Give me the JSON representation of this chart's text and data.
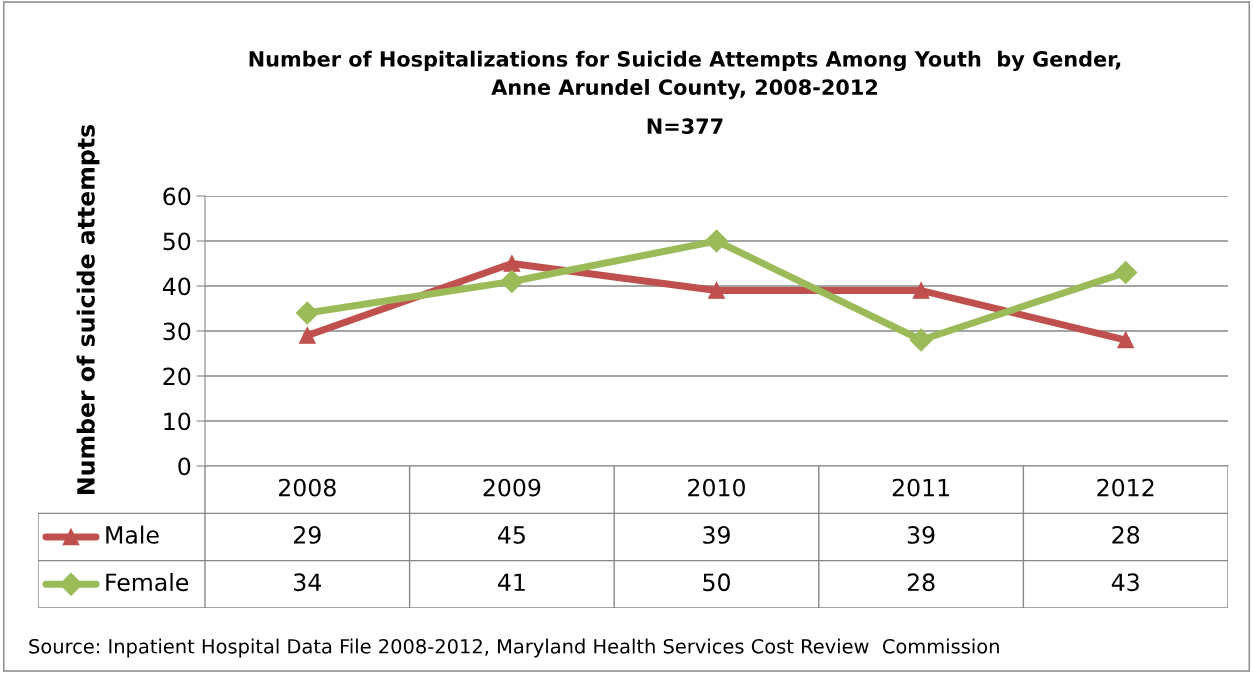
{
  "chart_data": {
    "type": "line",
    "title": "Number of Hospitalizations for Suicide Attempts Among Youth  by Gender,\nAnne Arundel County, 2008-2012",
    "subtitle": "N=377",
    "ylabel": "Number of suicide attempts",
    "categories": [
      "2008",
      "2009",
      "2010",
      "2011",
      "2012"
    ],
    "series": [
      {
        "name": "Male",
        "color": "#c0504d",
        "marker": "triangle",
        "values": [
          29,
          45,
          39,
          39,
          28
        ]
      },
      {
        "name": "Female",
        "color": "#9bbb59",
        "marker": "diamond",
        "values": [
          34,
          41,
          50,
          28,
          43
        ]
      }
    ],
    "ylim": [
      0,
      60
    ],
    "yticks": [
      0,
      10,
      20,
      30,
      40,
      50,
      60
    ],
    "grid": "y",
    "legend": "bottom",
    "data_labels": true,
    "line_style": "solid",
    "annotations": [
      "Source: Inpatient Hospital Data File 2008-2012, Maryland Health Services Cost Review  Commission"
    ]
  }
}
